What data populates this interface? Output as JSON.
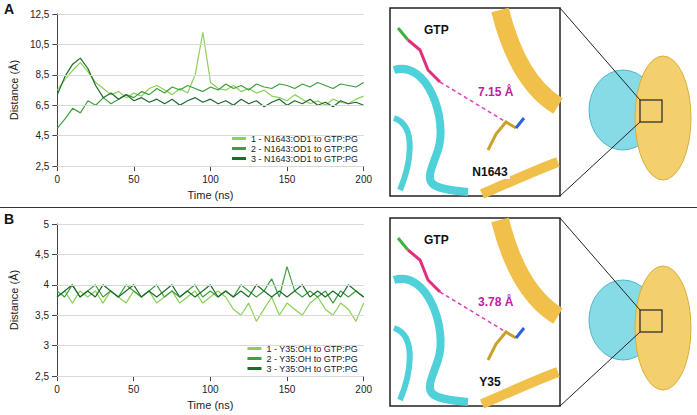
{
  "chart_data": [
    {
      "type": "line",
      "panel": "A",
      "xlabel": "Time (ns)",
      "ylabel": "Distance (Å)",
      "x": [
        0,
        5,
        10,
        15,
        20,
        25,
        30,
        35,
        40,
        45,
        50,
        55,
        60,
        65,
        70,
        75,
        80,
        85,
        90,
        95,
        100,
        105,
        110,
        115,
        120,
        125,
        130,
        135,
        140,
        145,
        150,
        155,
        160,
        165,
        170,
        175,
        180,
        185,
        190,
        195,
        200
      ],
      "xlim": [
        0,
        200
      ],
      "xticks": [
        0,
        50,
        100,
        150,
        200
      ],
      "ylim": [
        2.5,
        12.5
      ],
      "yticks": [
        {
          "value": 2.5,
          "label": "2,5"
        },
        {
          "value": 4.5,
          "label": "4,5"
        },
        {
          "value": 6.5,
          "label": "6,5"
        },
        {
          "value": 8.5,
          "label": "8,5"
        },
        {
          "value": 10.5,
          "label": "10,5"
        },
        {
          "value": 12.5,
          "label": "12,5"
        }
      ],
      "grid": true,
      "legend": "lower right",
      "series": [
        {
          "name": "1 - N1643:OD1 to GTP:PG",
          "color": "#8cd05a",
          "values": [
            7.5,
            8.2,
            8.8,
            9.3,
            8.7,
            8.0,
            7.6,
            7.2,
            7.4,
            7.0,
            7.3,
            7.1,
            7.6,
            7.8,
            7.5,
            7.2,
            7.6,
            7.3,
            8.5,
            11.3,
            8.0,
            7.6,
            7.5,
            7.8,
            7.4,
            7.6,
            7.3,
            7.5,
            7.1,
            7.0,
            6.8,
            7.2,
            6.9,
            6.6,
            6.8,
            6.5,
            6.9,
            6.7,
            6.6,
            6.9,
            7.1
          ]
        },
        {
          "name": "2 - N1643:OD1 to GTP:PG",
          "color": "#3e9f3e",
          "values": [
            5.0,
            5.6,
            6.3,
            6.0,
            6.8,
            6.5,
            7.0,
            6.6,
            6.9,
            7.2,
            7.0,
            7.4,
            7.2,
            7.6,
            7.3,
            7.7,
            7.5,
            7.8,
            7.6,
            7.4,
            7.7,
            7.5,
            7.9,
            7.6,
            7.8,
            7.5,
            7.9,
            7.7,
            7.6,
            7.9,
            7.8,
            7.6,
            7.9,
            7.7,
            8.0,
            7.8,
            7.6,
            7.9,
            7.8,
            7.7,
            8.0
          ]
        },
        {
          "name": "3 - N1643:OD1 to GTP:PG",
          "color": "#1d6b2b",
          "values": [
            7.2,
            8.4,
            9.2,
            9.6,
            8.9,
            7.8,
            7.0,
            7.3,
            6.9,
            7.2,
            6.8,
            7.0,
            6.7,
            6.9,
            6.6,
            6.9,
            6.5,
            6.8,
            7.0,
            6.7,
            6.9,
            6.6,
            6.8,
            6.5,
            6.9,
            6.6,
            6.8,
            6.4,
            6.7,
            6.9,
            6.5,
            6.8,
            6.6,
            6.9,
            6.5,
            6.7,
            6.4,
            6.8,
            6.6,
            6.7,
            6.5
          ]
        }
      ],
      "annotations": [
        "GTP",
        "N1643",
        "7.15 Å"
      ]
    },
    {
      "type": "line",
      "panel": "B",
      "xlabel": "Time (ns)",
      "ylabel": "Distance (Å)",
      "x": [
        0,
        5,
        10,
        15,
        20,
        25,
        30,
        35,
        40,
        45,
        50,
        55,
        60,
        65,
        70,
        75,
        80,
        85,
        90,
        95,
        100,
        105,
        110,
        115,
        120,
        125,
        130,
        135,
        140,
        145,
        150,
        155,
        160,
        165,
        170,
        175,
        180,
        185,
        190,
        195,
        200
      ],
      "xlim": [
        0,
        200
      ],
      "xticks": [
        0,
        50,
        100,
        150,
        200
      ],
      "ylim": [
        2.5,
        5
      ],
      "yticks": [
        {
          "value": 2.5,
          "label": "2,5"
        },
        3,
        {
          "value": 3.5,
          "label": "3,5"
        },
        4,
        {
          "value": 4.5,
          "label": "4,5"
        },
        5
      ],
      "grid": true,
      "legend": "lower right",
      "series": [
        {
          "name": "1 - Y35:OH to GTP:PG",
          "color": "#8cd05a",
          "values": [
            3.8,
            3.9,
            3.7,
            3.9,
            3.8,
            3.9,
            3.7,
            3.9,
            3.8,
            3.7,
            3.9,
            3.8,
            3.9,
            3.7,
            3.8,
            3.9,
            3.7,
            3.8,
            3.9,
            3.7,
            3.8,
            3.9,
            3.8,
            3.6,
            3.5,
            3.7,
            3.4,
            3.6,
            3.8,
            3.5,
            3.7,
            3.6,
            3.5,
            3.7,
            3.8,
            3.6,
            3.5,
            3.7,
            3.6,
            3.4,
            3.7
          ]
        },
        {
          "name": "2 - Y35:OH to GTP:PG",
          "color": "#3e9f3e",
          "values": [
            3.9,
            3.8,
            4.0,
            3.8,
            3.9,
            4.0,
            3.8,
            3.9,
            3.8,
            4.0,
            3.9,
            3.8,
            3.9,
            4.0,
            3.8,
            3.9,
            3.8,
            3.9,
            4.0,
            3.8,
            3.9,
            3.8,
            3.9,
            3.8,
            4.0,
            3.9,
            3.8,
            3.9,
            4.1,
            3.8,
            4.3,
            3.9,
            3.8,
            3.9,
            3.8,
            3.9,
            3.7,
            3.9,
            3.8,
            3.9,
            3.8
          ]
        },
        {
          "name": "3 - Y35:OH to GTP:PG",
          "color": "#1d6b2b",
          "values": [
            3.8,
            3.9,
            4.0,
            3.8,
            3.9,
            3.8,
            4.0,
            3.9,
            3.8,
            3.9,
            4.0,
            3.8,
            3.9,
            3.8,
            3.9,
            4.0,
            3.8,
            3.9,
            3.8,
            3.9,
            4.0,
            3.8,
            3.9,
            3.8,
            3.9,
            3.8,
            4.0,
            3.9,
            3.8,
            3.9,
            3.8,
            3.9,
            4.0,
            3.8,
            3.9,
            3.8,
            3.9,
            3.8,
            4.0,
            3.9,
            3.8
          ]
        }
      ],
      "annotations": [
        "GTP",
        "Y35",
        "3.78 Å"
      ]
    }
  ]
}
